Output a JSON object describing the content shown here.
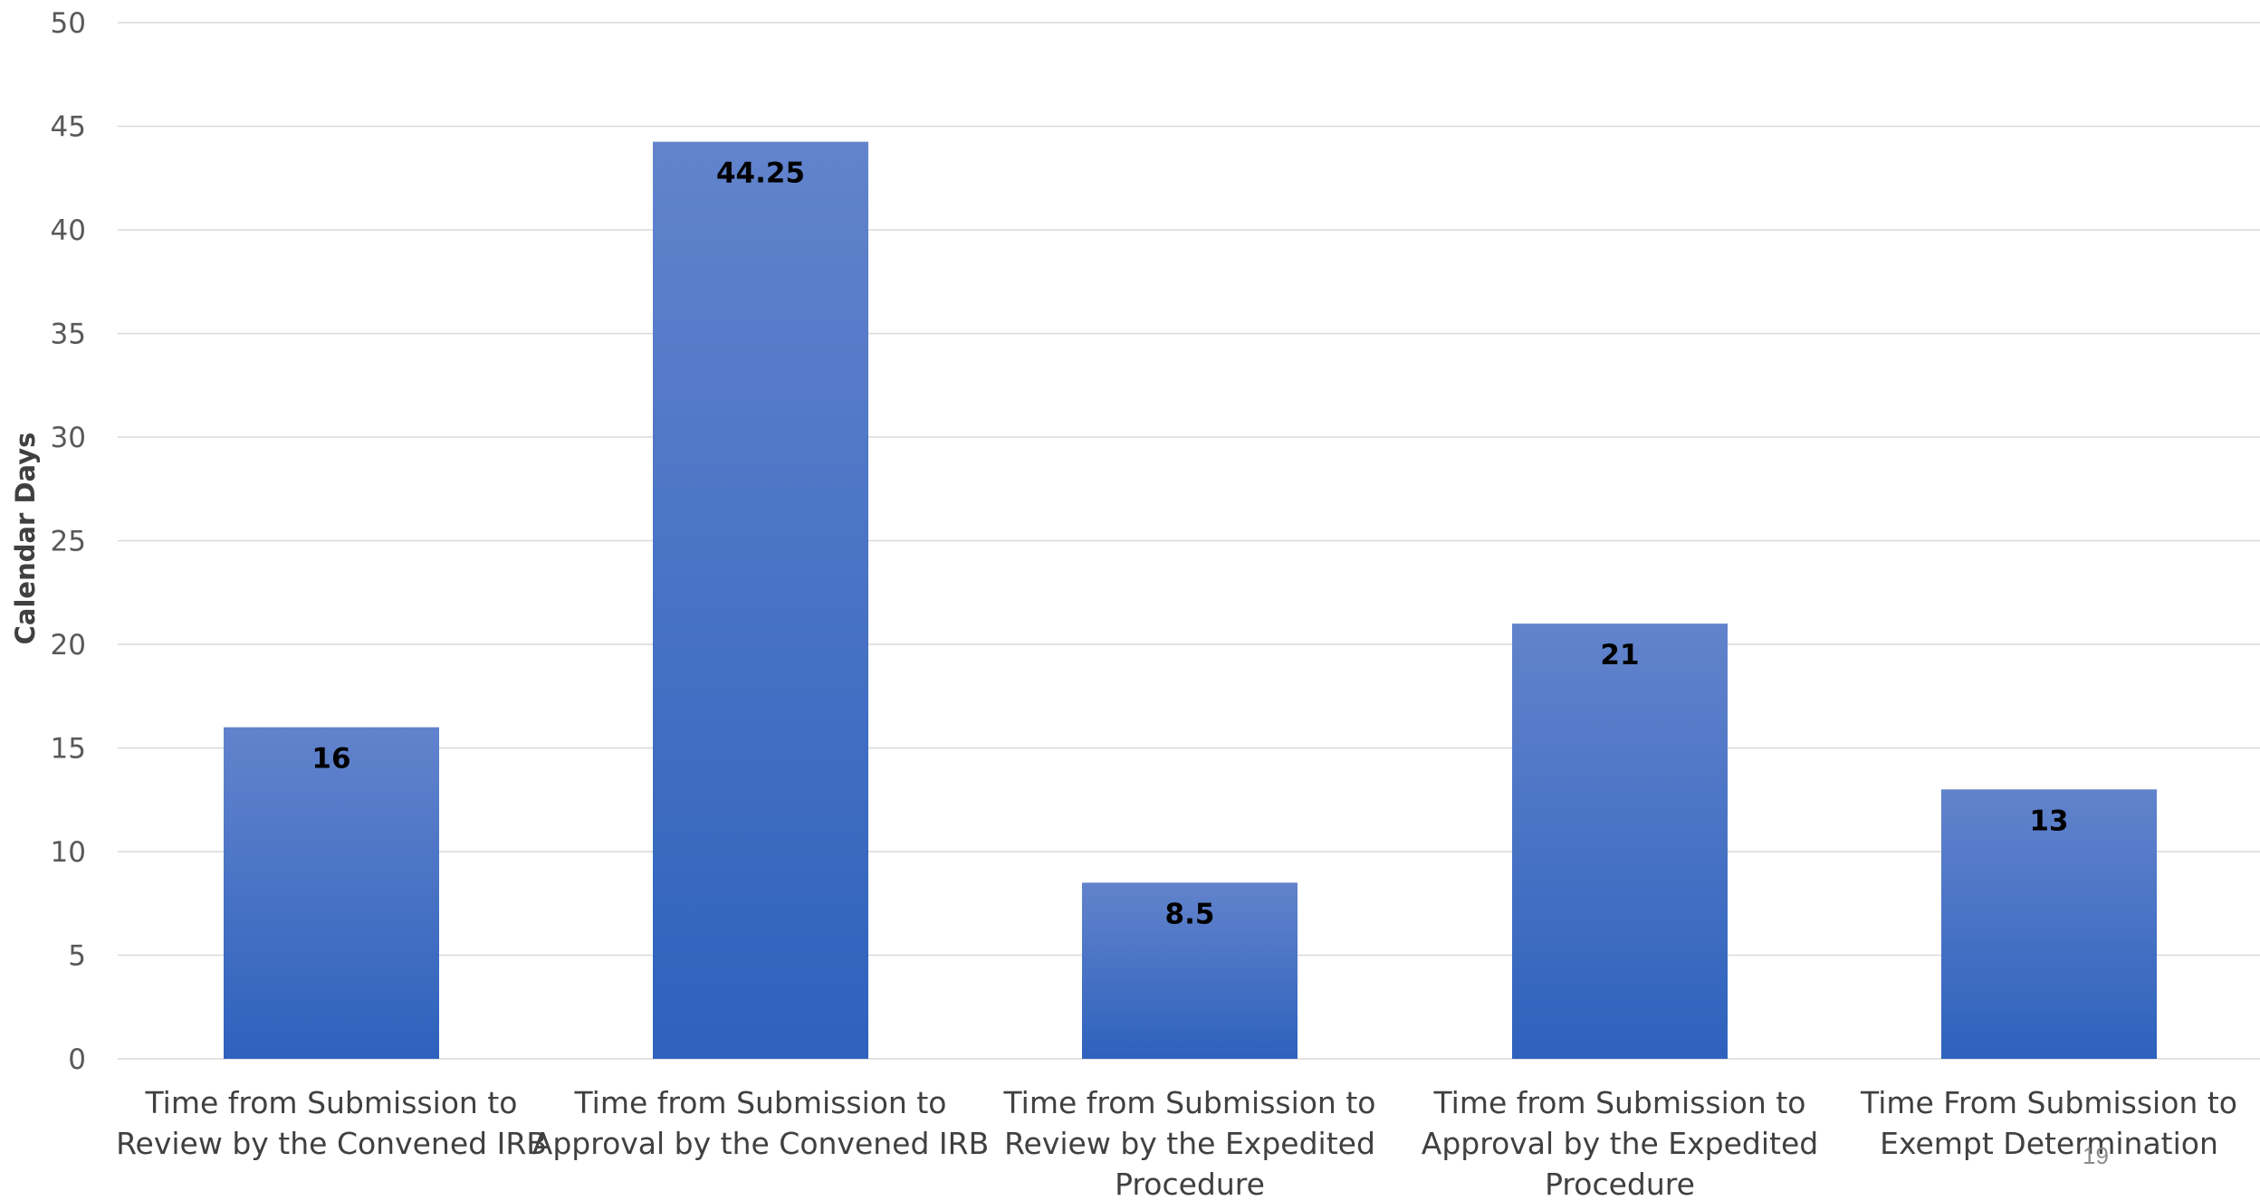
{
  "chart_data": {
    "type": "bar",
    "title": "",
    "xlabel": "",
    "ylabel": "Calendar Days",
    "ylim": [
      0,
      50
    ],
    "yticks": [
      0,
      5,
      10,
      15,
      20,
      25,
      30,
      35,
      40,
      45,
      50
    ],
    "grid": true,
    "legend": "none",
    "categories": [
      [
        "Time from Submission to",
        "Review by the Convened IRB"
      ],
      [
        "Time from Submission to",
        "Approval by the Convened IRB"
      ],
      [
        "Time from Submission to",
        "Review by the Expedited",
        "Procedure"
      ],
      [
        "Time from Submission to",
        "Approval by the Expedited",
        "Procedure"
      ],
      [
        "Time From Submission to",
        "Exempt Determination"
      ]
    ],
    "values": [
      16,
      44.25,
      8.5,
      21,
      13
    ],
    "data_labels": [
      "16",
      "44.25",
      "8.5",
      "21",
      "13"
    ],
    "colors": {
      "bar_top": "#6283cc",
      "bar_bottom": "#2e62bd",
      "gridline": "#d9d9d9"
    }
  },
  "page": {
    "number": "19"
  }
}
